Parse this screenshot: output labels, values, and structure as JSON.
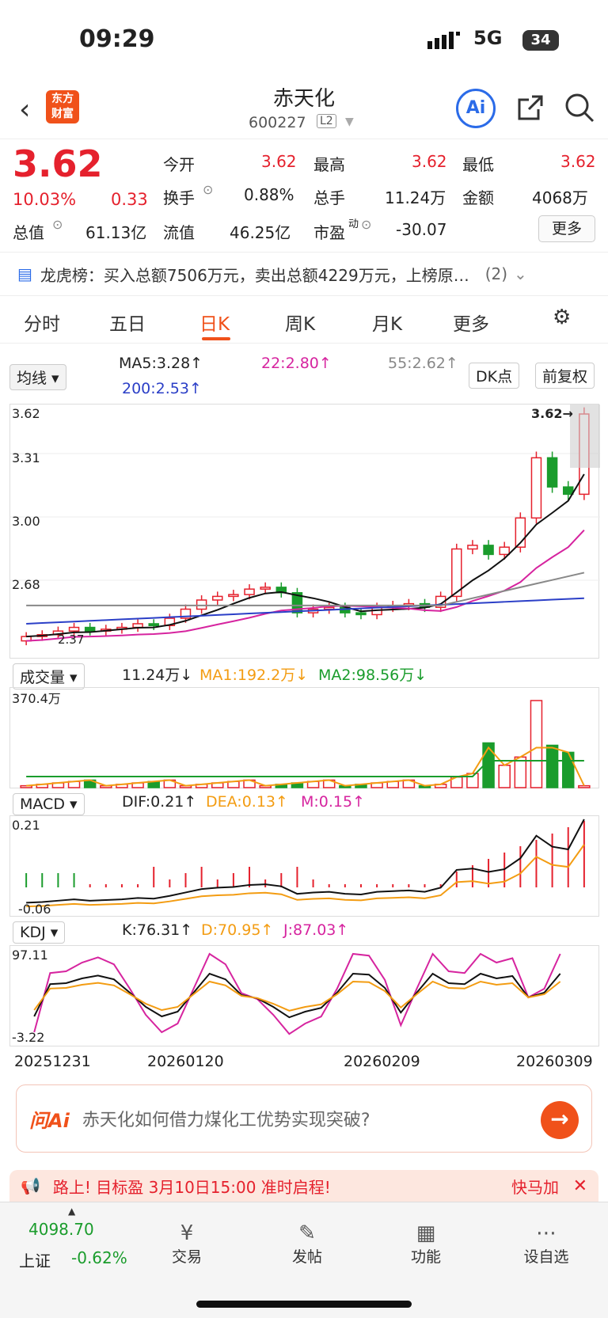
{
  "status": {
    "time": "09:29",
    "network": "5G",
    "battery": "34"
  },
  "header": {
    "title": "赤天化",
    "code": "600227",
    "level": "L2",
    "logo_line1": "东方",
    "logo_line2": "财富",
    "ai_label": "Ai"
  },
  "quote": {
    "price": "3.62",
    "change_pct": "10.03%",
    "change": "0.33",
    "open_label": "今开",
    "open": "3.62",
    "high_label": "最高",
    "high": "3.62",
    "low_label": "最低",
    "low": "3.62",
    "turnover_label": "换手",
    "turnover": "0.88%",
    "volume_label": "总手",
    "volume": "11.24万",
    "amount_label": "金额",
    "amount": "4068万",
    "mktcap_label": "总值",
    "mktcap": "61.13亿",
    "float_label": "流值",
    "float": "46.25亿",
    "pe_label": "市盈",
    "pe_sup": "动",
    "pe": "-30.07",
    "more": "更多"
  },
  "lhb": {
    "text": "龙虎榜：买入总额7506万元，卖出总额4229万元，上榜原…",
    "count": "(2)"
  },
  "tabs": [
    "分时",
    "五日",
    "日K",
    "周K",
    "月K",
    "更多"
  ],
  "active_tab": "日K",
  "ma": {
    "selector": "均线",
    "ma5": "MA5:3.28↑",
    "ma22": "22:2.80↑",
    "ma55": "55:2.62↑",
    "ma200": "200:2.53↑",
    "dk": "DK点",
    "fq": "前复权"
  },
  "kline": {
    "y_labels": [
      "3.62",
      "3.31",
      "3.00",
      "2.68"
    ],
    "last_price": "3.62→",
    "low_label": "2.37"
  },
  "volume": {
    "selector": "成交量",
    "val": "11.24万↓",
    "ma1": "MA1:192.2万↓",
    "ma2": "MA2:98.56万↓",
    "max": "370.4万"
  },
  "macd": {
    "selector": "MACD",
    "dif": "DIF:0.21↑",
    "dea": "DEA:0.13↑",
    "m": "M:0.15↑",
    "top": "0.21",
    "bottom": "-0.06"
  },
  "kdj": {
    "selector": "KDJ",
    "k": "K:76.31↑",
    "d": "D:70.95↑",
    "j": "J:87.03↑",
    "top": "97.11",
    "bottom": "-3.22"
  },
  "dates": [
    "20251231",
    "20260120",
    "20260209",
    "20260309"
  ],
  "ask": {
    "brand": "问Ai",
    "question": "赤天化如何借力煤化工优势实现突破?"
  },
  "promo": {
    "text": "路上! 目标盈 3月10日15:00 准时启程!",
    "right": "快马加"
  },
  "nav": {
    "index_value": "4098.70",
    "index_name": "上证",
    "index_chg": "-0.62%",
    "items": [
      "交易",
      "发帖",
      "功能",
      "设自选"
    ]
  },
  "chart_data": {
    "type": "candlestick",
    "closes": [
      2.4,
      2.41,
      2.43,
      2.45,
      2.43,
      2.44,
      2.45,
      2.47,
      2.46,
      2.5,
      2.55,
      2.6,
      2.62,
      2.63,
      2.66,
      2.67,
      2.64,
      2.53,
      2.55,
      2.56,
      2.53,
      2.52,
      2.56,
      2.57,
      2.58,
      2.56,
      2.62,
      2.88,
      2.9,
      2.85,
      2.89,
      3.05,
      3.38,
      3.22,
      3.18,
      3.62
    ],
    "y_range": [
      2.37,
      3.62
    ]
  }
}
